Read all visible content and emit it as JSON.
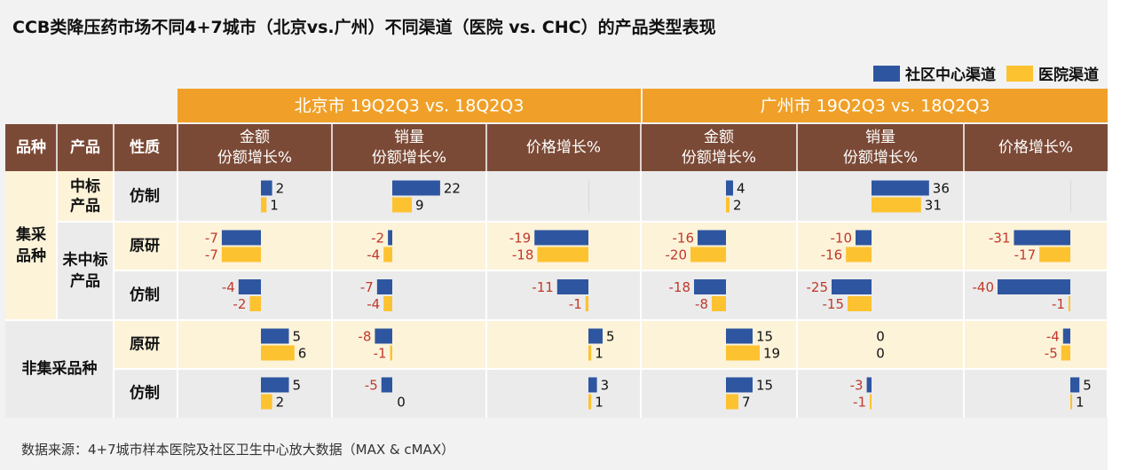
{
  "title": "CCB类降压药市场不同4+7城市（北京vs.广州）不同渠道（医院 vs. CHC）的产品类型表现",
  "legend": [
    {
      "label": "社区中心渠道",
      "color": "#2e56a0"
    },
    {
      "label": "医院渠道",
      "color": "#fdc230"
    }
  ],
  "source": "数据来源：4+7城市样本医院及社区卫生中心放大数据（MAX & cMAX）",
  "header": {
    "city_groups": [
      "北京市 19Q2Q3 vs. 18Q2Q3",
      "广州市 19Q2Q3 vs. 18Q2Q3"
    ],
    "row_cols": [
      "品种",
      "产品",
      "性质"
    ],
    "metric_cols": [
      {
        "line1": "金额",
        "line2": "份额增长%"
      },
      {
        "line1": "销量",
        "line2": "份额增长%"
      },
      {
        "line1": "价格增长%",
        "line2": ""
      }
    ]
  },
  "row_labels": {
    "group_jicai": "集采\n品种",
    "group_feijicai": "非集采品种",
    "prod_zhongbiao": "中标\n产品",
    "prod_weizhongbiao": "未中标\n产品",
    "nature": [
      "仿制",
      "原研",
      "仿制",
      "原研",
      "仿制"
    ]
  },
  "chart_data": {
    "type": "bar",
    "orientation": "horizontal",
    "series": [
      {
        "name": "社区中心渠道",
        "color": "#2e56a0"
      },
      {
        "name": "医院渠道",
        "color": "#fdc230"
      }
    ],
    "columns": [
      "北京 金额份额增长%",
      "北京 销量份额增长%",
      "北京 价格增长%",
      "广州 金额份额增长%",
      "广州 销量份额增长%",
      "广州 价格增长%"
    ],
    "rows": [
      {
        "group": "集采品种",
        "product": "中标产品",
        "nature": "仿制",
        "values": [
          [
            2,
            1
          ],
          [
            22,
            9
          ],
          [
            null,
            null
          ],
          [
            4,
            2
          ],
          [
            36,
            31
          ],
          [
            null,
            null
          ]
        ]
      },
      {
        "group": "集采品种",
        "product": "未中标产品",
        "nature": "原研",
        "values": [
          [
            -7,
            -7
          ],
          [
            -2,
            -4
          ],
          [
            -19,
            -18
          ],
          [
            -16,
            -20
          ],
          [
            -10,
            -16
          ],
          [
            -31,
            -17
          ]
        ]
      },
      {
        "group": "集采品种",
        "product": "未中标产品",
        "nature": "仿制",
        "values": [
          [
            -4,
            -2
          ],
          [
            -7,
            -4
          ],
          [
            -11,
            -1
          ],
          [
            -18,
            -8
          ],
          [
            -25,
            -15
          ],
          [
            -40,
            -1
          ]
        ]
      },
      {
        "group": "非集采品种",
        "product": "",
        "nature": "原研",
        "values": [
          [
            5,
            6
          ],
          [
            -8,
            -1
          ],
          [
            5,
            1
          ],
          [
            15,
            19
          ],
          [
            0,
            0
          ],
          [
            -4,
            -5
          ]
        ]
      },
      {
        "group": "非集采品种",
        "product": "",
        "nature": "仿制",
        "values": [
          [
            5,
            2
          ],
          [
            -5,
            0
          ],
          [
            3,
            1
          ],
          [
            15,
            7
          ],
          [
            -3,
            -1
          ],
          [
            5,
            1
          ]
        ]
      }
    ]
  },
  "colors": {
    "header_orange": "#f0a028",
    "header_brown": "#7b4a36",
    "row_cream": "#fdf3d9",
    "row_gray": "#ebebeb",
    "negative_label": "#c0392b"
  }
}
